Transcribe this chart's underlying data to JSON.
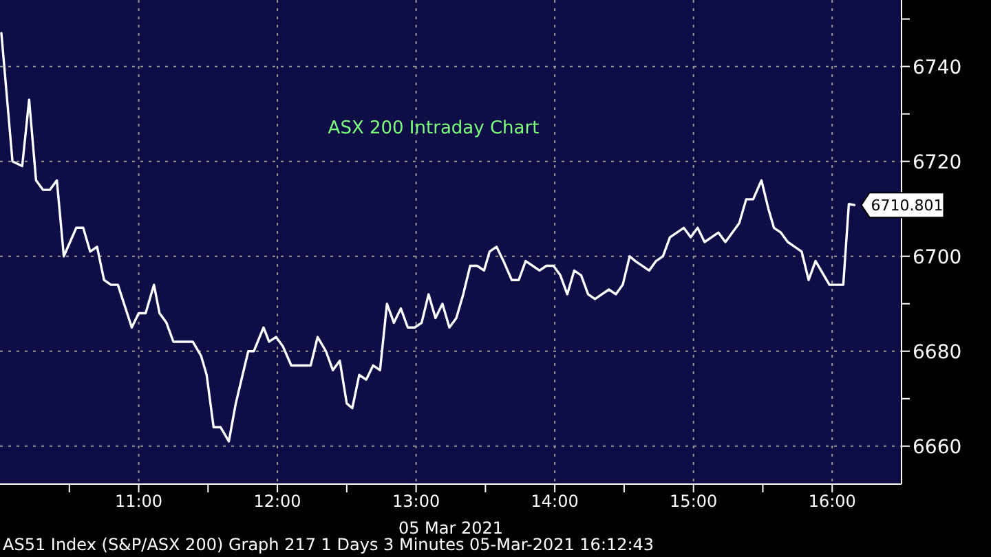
{
  "chart_data": {
    "type": "line",
    "title": "ASX 200 Intraday Chart",
    "xlabel": "05 Mar 2021",
    "annotations": [
      "AS51 Index (S&P/ASX 200) Graph 217 1 Days 3 Minutes 05-Mar-2021 16:12:43"
    ],
    "x": [
      10.01,
      10.09,
      10.16,
      10.21,
      10.26,
      10.31,
      10.36,
      10.41,
      10.46,
      10.55,
      10.6,
      10.65,
      10.7,
      10.75,
      10.8,
      10.85,
      10.95,
      11.0,
      11.05,
      11.11,
      11.15,
      11.2,
      11.25,
      11.29,
      11.39,
      11.45,
      11.49,
      11.54,
      11.59,
      11.65,
      11.7,
      11.79,
      11.83,
      11.9,
      11.94,
      11.99,
      12.04,
      12.1,
      12.24,
      12.29,
      12.35,
      12.4,
      12.45,
      12.5,
      12.54,
      12.59,
      12.64,
      12.69,
      12.74,
      12.79,
      12.84,
      12.89,
      12.94,
      12.99,
      13.04,
      13.09,
      13.14,
      13.19,
      13.24,
      13.29,
      13.34,
      13.39,
      13.44,
      13.49,
      13.53,
      13.58,
      13.63,
      13.69,
      13.74,
      13.79,
      13.84,
      13.89,
      13.94,
      13.99,
      14.04,
      14.09,
      14.14,
      14.19,
      14.24,
      14.29,
      14.34,
      14.39,
      14.44,
      14.49,
      14.54,
      14.58,
      14.68,
      14.73,
      14.78,
      14.83,
      14.93,
      14.98,
      15.03,
      15.08,
      15.18,
      15.23,
      15.33,
      15.38,
      15.43,
      15.49,
      15.54,
      15.58,
      15.63,
      15.68,
      15.73,
      15.78,
      15.83,
      15.88,
      15.98,
      16.08,
      16.12,
      16.16
    ],
    "series": [
      {
        "color": "#ffffff",
        "values": [
          6747,
          6720,
          6719,
          6733,
          6716,
          6714,
          6714,
          6716,
          6700,
          6706,
          6706,
          6701,
          6702,
          6695,
          6694,
          6694,
          6685,
          6688,
          6688,
          6694,
          6688,
          6686,
          6682,
          6682,
          6682,
          6679,
          6675,
          6664,
          6664,
          6661,
          6669,
          6680,
          6680,
          6685,
          6682,
          6683,
          6681,
          6677,
          6677,
          6683,
          6680,
          6676,
          6678,
          6669,
          6668,
          6675,
          6674,
          6677,
          6676,
          6690,
          6686,
          6689,
          6685,
          6685,
          6686,
          6692,
          6687,
          6690,
          6685,
          6687,
          6692,
          6698,
          6698,
          6697,
          6701,
          6702,
          6699,
          6695,
          6695,
          6699,
          6698,
          6697,
          6698,
          6698,
          6696,
          6692,
          6697,
          6696,
          6692,
          6691,
          6692,
          6693,
          6692,
          6694,
          6700,
          6699,
          6697,
          6699,
          6700,
          6704,
          6706,
          6704,
          6706,
          6703,
          6705,
          6703,
          6707,
          6712,
          6712,
          6716,
          6710,
          6706,
          6705,
          6703,
          6702,
          6701,
          6695,
          6699,
          6694,
          6694,
          6711,
          6710.801
        ],
        "value_labels": [
          null,
          null,
          null,
          null,
          null,
          null,
          null,
          null,
          null,
          null,
          null,
          null,
          null,
          null,
          null,
          null,
          null,
          null,
          null,
          null,
          null,
          null,
          null,
          null,
          null,
          null,
          null,
          null,
          null,
          null,
          null,
          null,
          null,
          null,
          null,
          null,
          null,
          null,
          null,
          null,
          null,
          null,
          null,
          null,
          null,
          null,
          null,
          null,
          null,
          null,
          null,
          null,
          null,
          null,
          null,
          null,
          null,
          null,
          null,
          null,
          null,
          null,
          null,
          null,
          null,
          null,
          null,
          null,
          null,
          null,
          null,
          null,
          null,
          null,
          null,
          null,
          null,
          null,
          null,
          null,
          null,
          null,
          null,
          null,
          null,
          null,
          null,
          null,
          null,
          null,
          null,
          null,
          null,
          null,
          null,
          null,
          null,
          null,
          null,
          null,
          null,
          null,
          null,
          null,
          null,
          null,
          null,
          null,
          null,
          null,
          null,
          "6710.801"
        ]
      }
    ],
    "xlim": [
      10,
      16.5
    ],
    "xticks": [
      {
        "value": 10.5,
        "label": null
      },
      {
        "value": 11,
        "label": "11:00"
      },
      {
        "value": 11.5,
        "label": null
      },
      {
        "value": 12,
        "label": "12:00"
      },
      {
        "value": 12.5,
        "label": null
      },
      {
        "value": 13,
        "label": "13:00"
      },
      {
        "value": 13.5,
        "label": null
      },
      {
        "value": 14,
        "label": "14:00"
      },
      {
        "value": 14.5,
        "label": null
      },
      {
        "value": 15,
        "label": "15:00"
      },
      {
        "value": 15.5,
        "label": null
      },
      {
        "value": 16,
        "label": "16:00"
      }
    ],
    "ylim": [
      6652,
      6754
    ],
    "yticks": [
      6660,
      {
        "value": 6670,
        "label": null
      },
      6680,
      {
        "value": 6690,
        "label": null
      },
      6700,
      {
        "value": 6710,
        "label": null
      },
      6720,
      {
        "value": 6730,
        "label": null
      },
      6740,
      {
        "value": 6750,
        "label": null
      }
    ],
    "grid": true,
    "legend": false,
    "marker": "none",
    "line_style": "solid",
    "tick_labels": [
      "x",
      "y"
    ]
  }
}
